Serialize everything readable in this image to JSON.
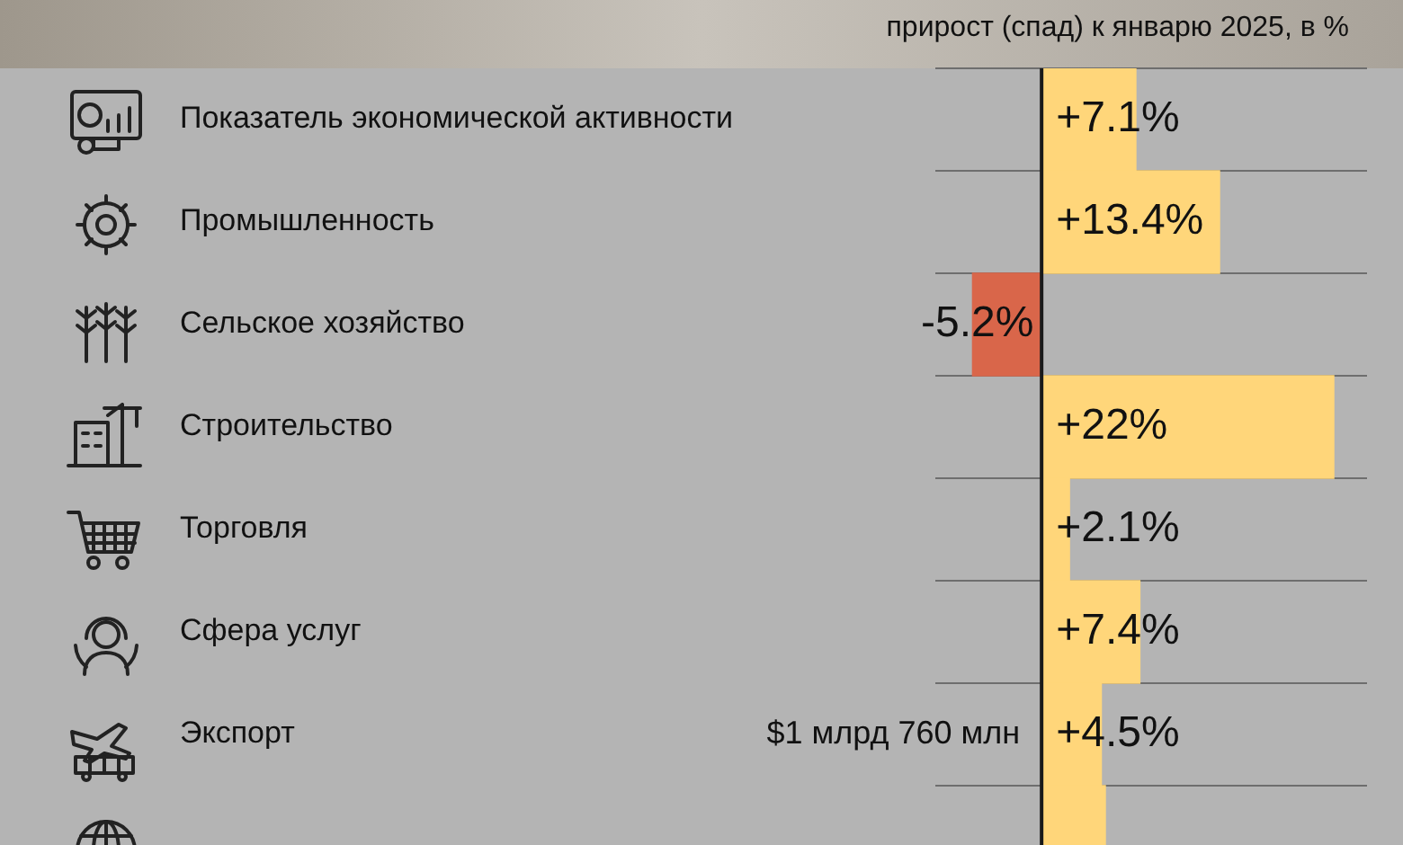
{
  "chart_data": {
    "type": "bar",
    "orientation": "horizontal",
    "title": "прирост (спад) к январю 2025, в %",
    "categories": [
      "Показатель экономической активности",
      "Промышленность",
      "Сельское хозяйство",
      "Строительство",
      "Торговля",
      "Сфера услуг",
      "Экспорт",
      null
    ],
    "values": [
      7.1,
      13.4,
      -5.2,
      22,
      2.1,
      7.4,
      4.5,
      4.8
    ],
    "value_labels": [
      "+7.1%",
      "+13.4%",
      "-5.2%",
      "+22%",
      "+2.1%",
      "+7.4%",
      "+4.5%",
      null
    ],
    "colors": [
      "#ffd67a",
      "#ffd67a",
      "#d9664a",
      "#ffd67a",
      "#ffd67a",
      "#ffd67a",
      "#ffd67a",
      "#ffd67a"
    ],
    "xlim": [
      -8,
      24.5
    ],
    "tick_labels": "y",
    "grid": "y",
    "legend": false,
    "ref_lines": [
      {
        "axis": "x",
        "value": 0,
        "color": "#1a1a1a"
      }
    ],
    "annotations": [
      {
        "text": "$1 млрд 760 млн",
        "x": 0,
        "y": "Экспорт"
      }
    ]
  }
}
